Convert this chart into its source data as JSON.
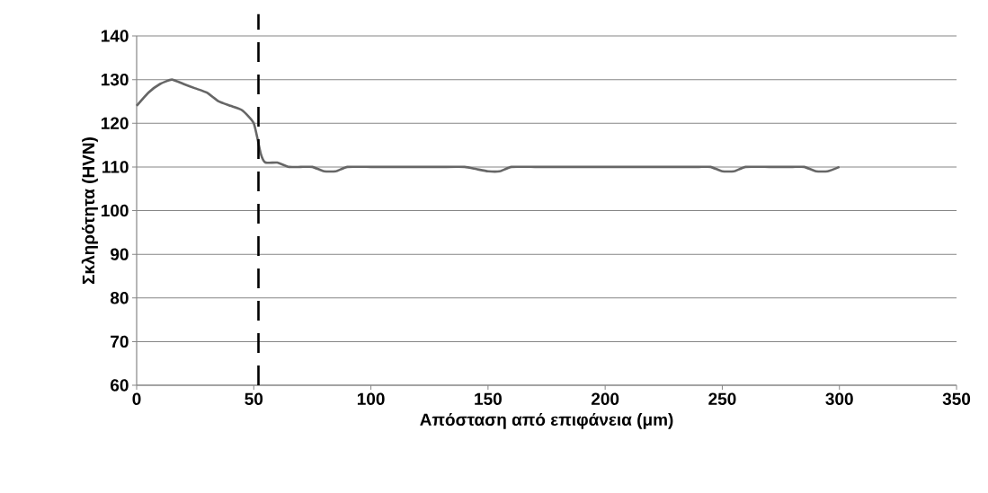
{
  "chart_data": {
    "type": "line",
    "xlabel": "Απόσταση από επιφάνεια (μm)",
    "ylabel": "Σκληρότητα (HVN)",
    "x": [
      0,
      5,
      10,
      15,
      20,
      25,
      30,
      35,
      40,
      45,
      50,
      53,
      55,
      60,
      65,
      70,
      75,
      80,
      85,
      90,
      100,
      110,
      120,
      130,
      140,
      145,
      150,
      155,
      160,
      170,
      180,
      190,
      200,
      210,
      220,
      230,
      240,
      245,
      250,
      255,
      260,
      270,
      280,
      285,
      290,
      295,
      300
    ],
    "series": [
      {
        "color": "#666666",
        "values": [
          124,
          127,
          129,
          130,
          129,
          128,
          127,
          125,
          124,
          123,
          120,
          113,
          111,
          111,
          110,
          110,
          110,
          109,
          109,
          110,
          110,
          110,
          110,
          110,
          110,
          109.5,
          109,
          109,
          110,
          110,
          110,
          110,
          110,
          110,
          110,
          110,
          110,
          110,
          109,
          109,
          110,
          110,
          110,
          110,
          109,
          109,
          110
        ]
      }
    ],
    "xlim": [
      0,
      350
    ],
    "ylim": [
      60,
      140
    ],
    "xticks": [
      0,
      50,
      100,
      150,
      200,
      250,
      300,
      350
    ],
    "yticks": [
      60,
      70,
      80,
      90,
      100,
      110,
      120,
      130,
      140
    ],
    "grid": "y",
    "marker": "none",
    "line_style": "solid",
    "ref_lines": [
      {
        "axis": "x",
        "value": 52,
        "color": "#000000",
        "line_style": "dashed"
      }
    ]
  }
}
